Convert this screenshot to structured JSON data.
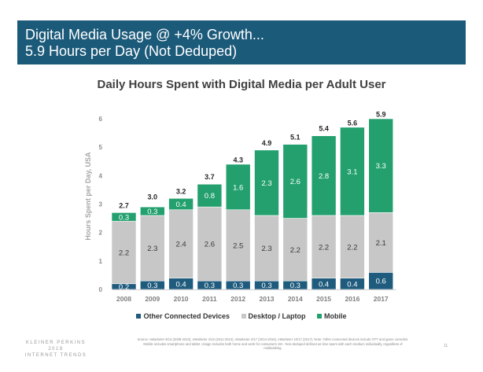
{
  "header": {
    "line1": "Digital Media Usage @ +4% Growth...",
    "line2": "5.9 Hours per Day (Not Deduped)"
  },
  "brand": {
    "line1": "KLEINER PERKINS",
    "line2": "2018",
    "line3": "INTERNET TRENDS"
  },
  "source": "Source: eMarketer 9/14 (2008-2010), eMarketer 4/15 (2011-2013), eMarketer 4/17 (2014-2016), eMarketer 10/17 (2017). Note: Other connected devices include OTT and game consoles. Mobile includes smartphone and tablet. Usage includes both home and work for consumers 18+. Non-deduped defined as time spent with each medium individually, regardless of multitasking.",
  "page_number": "11",
  "colors": {
    "header_bg": "#1c5a7a",
    "other": "#1f5b7d",
    "desktop": "#c7c7c7",
    "mobile": "#23a06e"
  },
  "chart_data": {
    "type": "bar",
    "stacked": true,
    "title": "Daily Hours Spent with Digital Media per Adult User",
    "xlabel": "",
    "ylabel": "Hours Spent per Day, USA",
    "ylim": [
      0,
      6
    ],
    "yticks": [
      "0",
      "1",
      "2",
      "3",
      "4",
      "5",
      "6"
    ],
    "categories": [
      "2008",
      "2009",
      "2010",
      "2011",
      "2012",
      "2013",
      "2014",
      "2015",
      "2016",
      "2017"
    ],
    "series": [
      {
        "name": "Other Connected Devices",
        "color": "#1f5b7d",
        "values": [
          0.2,
          0.3,
          0.4,
          0.3,
          0.3,
          0.3,
          0.3,
          0.4,
          0.4,
          0.6
        ],
        "labels": [
          "0.2",
          "0.3",
          "0.4",
          "0.3",
          "0.3",
          "0.3",
          "0.3",
          "0.4",
          "0.4",
          "0.6"
        ]
      },
      {
        "name": "Desktop / Laptop",
        "color": "#c7c7c7",
        "values": [
          2.2,
          2.3,
          2.4,
          2.6,
          2.5,
          2.3,
          2.2,
          2.2,
          2.2,
          2.1
        ],
        "labels": [
          "2.2",
          "2.3",
          "2.4",
          "2.6",
          "2.5",
          "2.3",
          "2.2",
          "2.2",
          "2.2",
          "2.1"
        ]
      },
      {
        "name": "Mobile",
        "color": "#23a06e",
        "values": [
          0.3,
          0.3,
          0.4,
          0.8,
          1.6,
          2.3,
          2.6,
          2.8,
          3.1,
          3.3
        ],
        "labels": [
          "0.3",
          "0.3",
          "0.4",
          "0.8",
          "1.6",
          "2.3",
          "2.6",
          "2.8",
          "3.1",
          "3.3"
        ]
      }
    ],
    "totals": [
      2.7,
      3.0,
      3.2,
      3.7,
      4.3,
      4.9,
      5.1,
      5.4,
      5.6,
      5.9
    ],
    "total_labels": [
      "2.7",
      "3.0",
      "3.2",
      "3.7",
      "4.3",
      "4.9",
      "5.1",
      "5.4",
      "5.6",
      "5.9"
    ],
    "grid": false,
    "legend": "bottom"
  }
}
